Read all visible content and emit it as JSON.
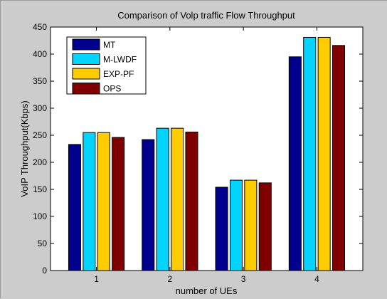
{
  "chart_data": {
    "type": "bar",
    "title": "Comparison of Volp traffic Flow Throughput",
    "xlabel": "number of UEs",
    "ylabel": "VoIP Throughput(Kbps)",
    "categories": [
      "1",
      "2",
      "3",
      "4"
    ],
    "series": [
      {
        "name": "MT",
        "color": "#00008f",
        "values": [
          233,
          242,
          154,
          395
        ]
      },
      {
        "name": "M-LWDF",
        "color": "#00d4ff",
        "values": [
          255,
          263,
          167,
          431
        ]
      },
      {
        "name": "EXP-PF",
        "color": "#ffcc00",
        "values": [
          255,
          263,
          167,
          431
        ]
      },
      {
        "name": "OPS",
        "color": "#800000",
        "values": [
          246,
          256,
          162,
          416
        ]
      }
    ],
    "ylim": [
      0,
      450
    ],
    "yticks": [
      0,
      50,
      100,
      150,
      200,
      250,
      300,
      350,
      400,
      450
    ],
    "grid": false,
    "legend": "top-left"
  }
}
